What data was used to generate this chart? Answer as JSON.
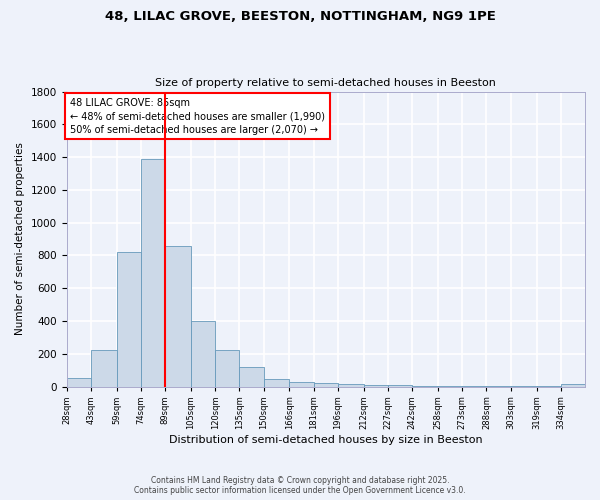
{
  "title_line1": "48, LILAC GROVE, BEESTON, NOTTINGHAM, NG9 1PE",
  "title_line2": "Size of property relative to semi-detached houses in Beeston",
  "xlabel": "Distribution of semi-detached houses by size in Beeston",
  "ylabel": "Number of semi-detached properties",
  "bin_labels": [
    "28sqm",
    "43sqm",
    "59sqm",
    "74sqm",
    "89sqm",
    "105sqm",
    "120sqm",
    "135sqm",
    "150sqm",
    "166sqm",
    "181sqm",
    "196sqm",
    "212sqm",
    "227sqm",
    "242sqm",
    "258sqm",
    "273sqm",
    "288sqm",
    "303sqm",
    "319sqm",
    "334sqm"
  ],
  "bin_edges": [
    28,
    43,
    59,
    74,
    89,
    105,
    120,
    135,
    150,
    166,
    181,
    196,
    212,
    227,
    242,
    258,
    273,
    288,
    303,
    319,
    334,
    349
  ],
  "bar_heights": [
    50,
    220,
    820,
    1390,
    860,
    400,
    220,
    120,
    45,
    30,
    20,
    15,
    10,
    8,
    5,
    3,
    2,
    2,
    1,
    1,
    15
  ],
  "bar_color": "#ccd9e8",
  "bar_edgecolor": "#6699bb",
  "vline_x": 89,
  "vline_color": "red",
  "annotation_title": "48 LILAC GROVE: 85sqm",
  "annotation_left": "← 48% of semi-detached houses are smaller (1,990)",
  "annotation_right": "50% of semi-detached houses are larger (2,070) →",
  "annotation_box_color": "white",
  "annotation_box_edgecolor": "red",
  "ylim": [
    0,
    1800
  ],
  "yticks": [
    0,
    200,
    400,
    600,
    800,
    1000,
    1200,
    1400,
    1600,
    1800
  ],
  "footer_line1": "Contains HM Land Registry data © Crown copyright and database right 2025.",
  "footer_line2": "Contains public sector information licensed under the Open Government Licence v3.0.",
  "bg_color": "#eef2fa",
  "grid_color": "white"
}
